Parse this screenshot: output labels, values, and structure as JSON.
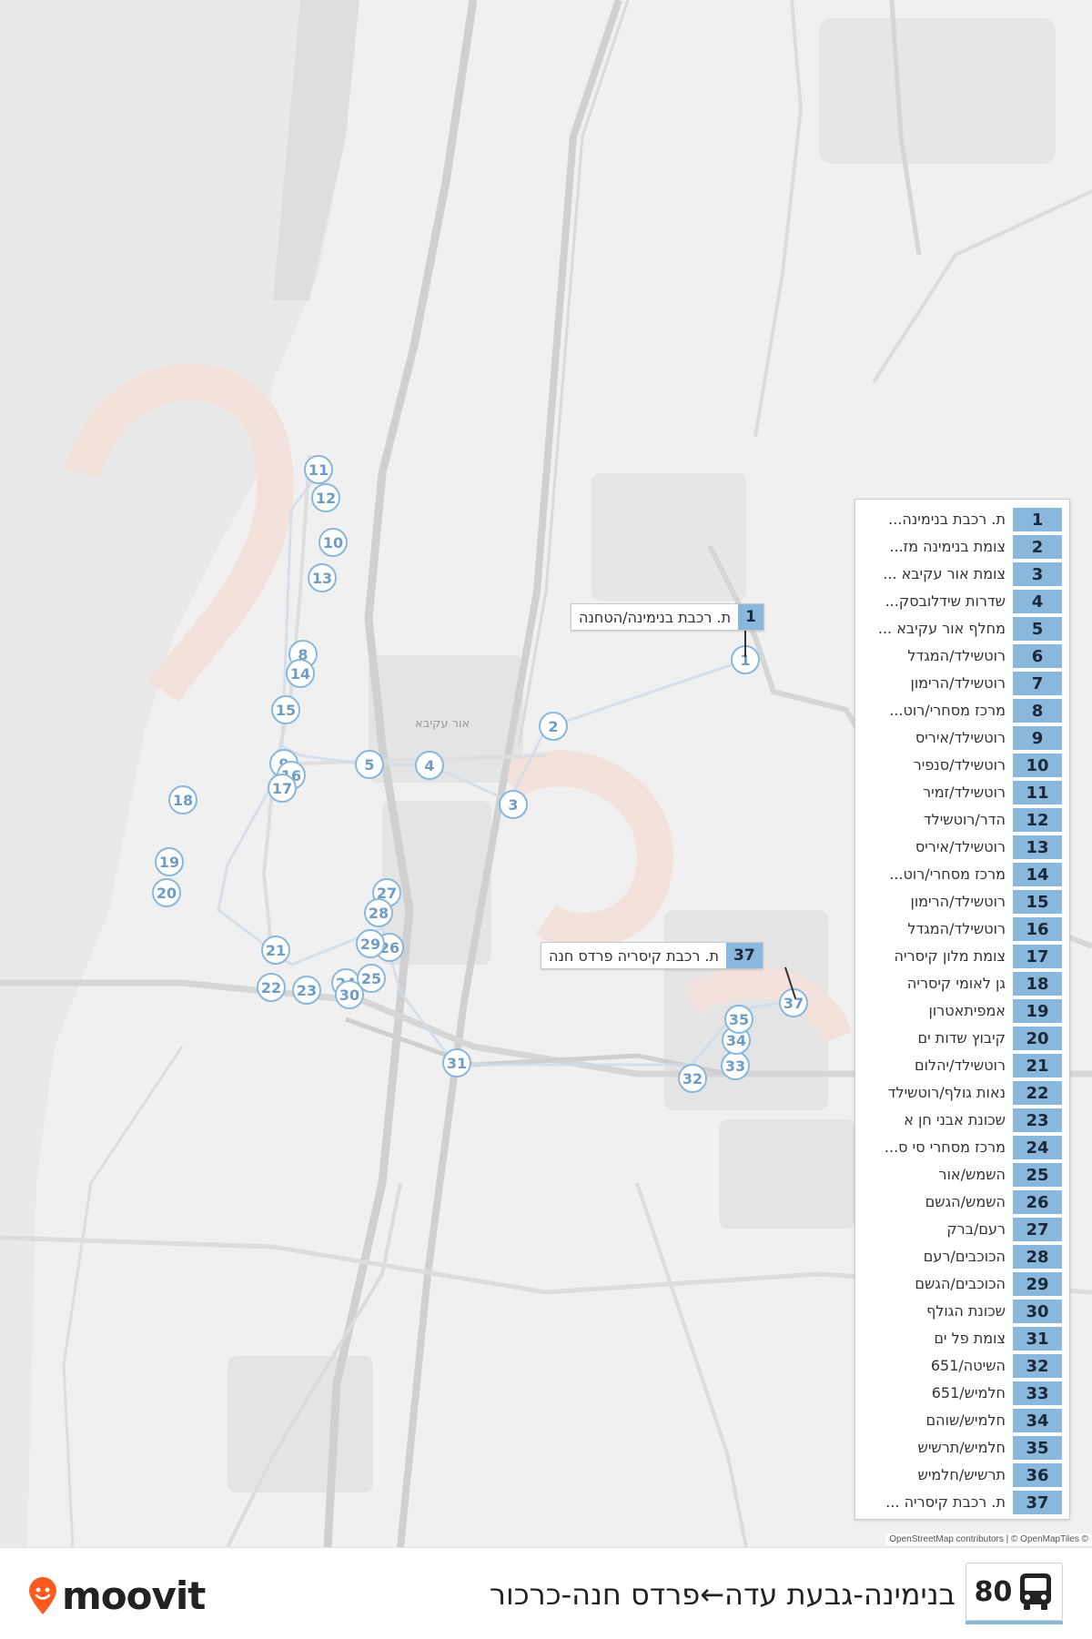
{
  "route": {
    "number": "80",
    "title": "בנימינה-גבעת עדה←פרדס חנה-כרכור"
  },
  "brand": {
    "name": "moovit",
    "accent": "#ff5a1f"
  },
  "colors": {
    "stop_ring": "#8ab8dc",
    "stop_text": "#6f9cc4",
    "map_bg": "#f0f0f0",
    "road": "#d2d2d2"
  },
  "map": {
    "town_label": "אור עקיבא",
    "attribution": "OpenStreetMap contributors | © OpenMapTiles ©"
  },
  "callouts": [
    {
      "number": "1",
      "label": "ת. רכבת בנימינה/הטחנה"
    },
    {
      "number": "37",
      "label": "ת. רכבת קיסריה פרדס חנה"
    }
  ],
  "map_stops": [
    "1",
    "2",
    "3",
    "4",
    "5",
    "8",
    "9",
    "10",
    "11",
    "12",
    "13",
    "14",
    "15",
    "16",
    "17",
    "18",
    "19",
    "20",
    "21",
    "22",
    "23",
    "24",
    "25",
    "26",
    "27",
    "28",
    "29",
    "30",
    "31",
    "32",
    "33",
    "34",
    "35",
    "37"
  ],
  "stops": [
    {
      "number": "1",
      "name": "ת. רכבת בנימינה..."
    },
    {
      "number": "2",
      "name": "צומת בנימינה מז..."
    },
    {
      "number": "3",
      "name": "צומת אור עקיבא ..."
    },
    {
      "number": "4",
      "name": "שדרות שידלובסק..."
    },
    {
      "number": "5",
      "name": "מחלף אור עקיבא ..."
    },
    {
      "number": "6",
      "name": "רוטשילד/המגדל"
    },
    {
      "number": "7",
      "name": "רוטשילד/הרימון"
    },
    {
      "number": "8",
      "name": "מרכז מסחרי/רוט..."
    },
    {
      "number": "9",
      "name": "רוטשילד/איריס"
    },
    {
      "number": "10",
      "name": "רוטשילד/סנפיר"
    },
    {
      "number": "11",
      "name": "רוטשילד/זמיר"
    },
    {
      "number": "12",
      "name": "הדר/רוטשילד"
    },
    {
      "number": "13",
      "name": "רוטשילד/איריס"
    },
    {
      "number": "14",
      "name": "מרכז מסחרי/רוט..."
    },
    {
      "number": "15",
      "name": "רוטשילד/הרימון"
    },
    {
      "number": "16",
      "name": "רוטשילד/המגדל"
    },
    {
      "number": "17",
      "name": "צומת מלון קיסריה"
    },
    {
      "number": "18",
      "name": "גן לאומי קיסריה"
    },
    {
      "number": "19",
      "name": "אמפיתאטרון"
    },
    {
      "number": "20",
      "name": "קיבוץ שדות ים"
    },
    {
      "number": "21",
      "name": "רוטשילד/יהלום"
    },
    {
      "number": "22",
      "name": "נאות גולף/רוטשילד"
    },
    {
      "number": "23",
      "name": "שכונת אבני חן א"
    },
    {
      "number": "24",
      "name": "מרכז מסחרי סי ס..."
    },
    {
      "number": "25",
      "name": "השמש/אור"
    },
    {
      "number": "26",
      "name": "השמש/הגשם"
    },
    {
      "number": "27",
      "name": "רעם/ברק"
    },
    {
      "number": "28",
      "name": "הכוכבים/רעם"
    },
    {
      "number": "29",
      "name": "הכוכבים/הגשם"
    },
    {
      "number": "30",
      "name": "שכונת הגולף"
    },
    {
      "number": "31",
      "name": "צומת פל ים"
    },
    {
      "number": "32",
      "name": "השיטה/651"
    },
    {
      "number": "33",
      "name": "חלמיש/651"
    },
    {
      "number": "34",
      "name": "חלמיש/שוהם"
    },
    {
      "number": "35",
      "name": "חלמיש/תרשיש"
    },
    {
      "number": "36",
      "name": "תרשיש/חלמיש"
    },
    {
      "number": "37",
      "name": "ת. רכבת קיסריה ..."
    }
  ]
}
